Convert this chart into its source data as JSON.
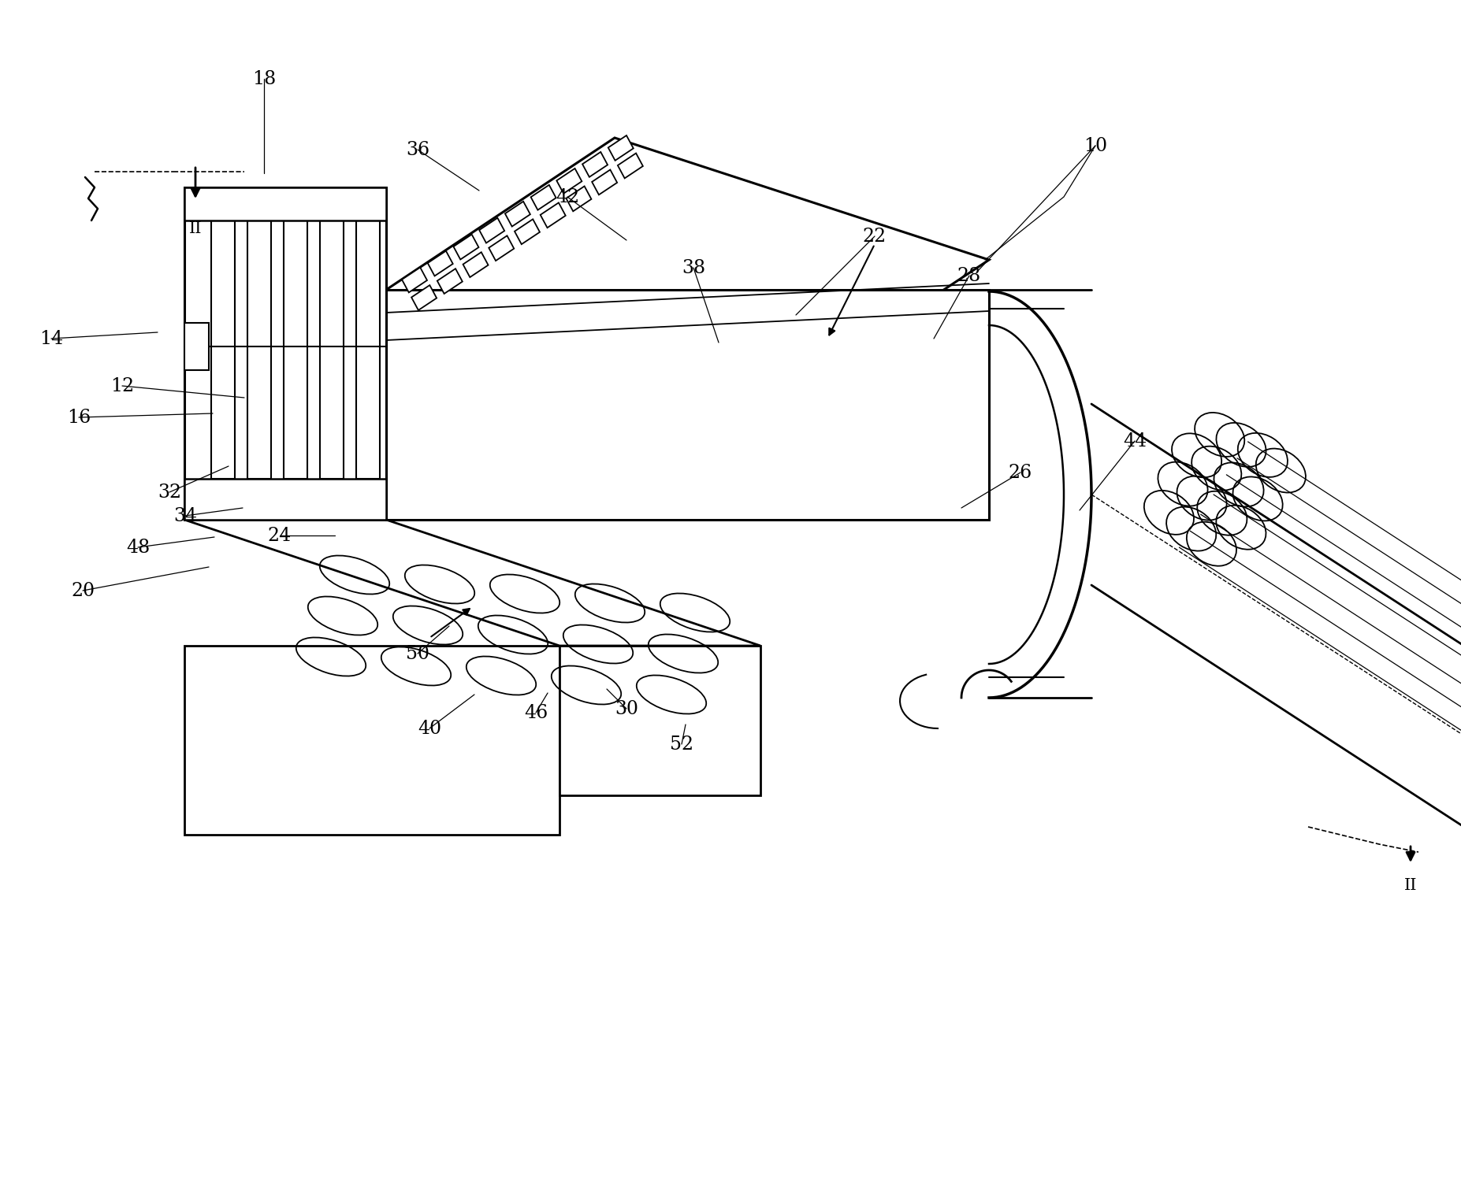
{
  "bg": "#ffffff",
  "lc": "#000000",
  "lw": 2.0,
  "lw_thin": 1.2,
  "lw_thick": 2.5,
  "labels": [
    [
      "10",
      1390,
      185
    ],
    [
      "12",
      155,
      490
    ],
    [
      "14",
      65,
      430
    ],
    [
      "16",
      100,
      530
    ],
    [
      "18",
      335,
      100
    ],
    [
      "20",
      105,
      750
    ],
    [
      "22",
      1110,
      300
    ],
    [
      "24",
      355,
      680
    ],
    [
      "26",
      1295,
      600
    ],
    [
      "28",
      1230,
      350
    ],
    [
      "30",
      795,
      900
    ],
    [
      "32",
      215,
      625
    ],
    [
      "34",
      235,
      655
    ],
    [
      "36",
      530,
      190
    ],
    [
      "38",
      880,
      340
    ],
    [
      "40",
      545,
      925
    ],
    [
      "42",
      720,
      250
    ],
    [
      "44",
      1440,
      560
    ],
    [
      "46",
      680,
      905
    ],
    [
      "48",
      175,
      695
    ],
    [
      "50",
      530,
      830
    ],
    [
      "52",
      865,
      945
    ]
  ],
  "leader_lines": [
    [
      "10",
      1390,
      185,
      1240,
      345
    ],
    [
      "12",
      155,
      490,
      310,
      505
    ],
    [
      "14",
      65,
      430,
      200,
      422
    ],
    [
      "16",
      100,
      530,
      270,
      525
    ],
    [
      "18",
      335,
      100,
      335,
      220
    ],
    [
      "20",
      105,
      750,
      265,
      720
    ],
    [
      "22",
      1110,
      300,
      1010,
      400
    ],
    [
      "24",
      355,
      680,
      425,
      680
    ],
    [
      "26",
      1295,
      600,
      1220,
      645
    ],
    [
      "28",
      1230,
      350,
      1185,
      430
    ],
    [
      "30",
      795,
      900,
      770,
      875
    ],
    [
      "32",
      215,
      625,
      290,
      592
    ],
    [
      "34",
      235,
      655,
      308,
      645
    ],
    [
      "36",
      530,
      190,
      608,
      242
    ],
    [
      "38",
      880,
      340,
      912,
      435
    ],
    [
      "40",
      545,
      925,
      602,
      882
    ],
    [
      "42",
      720,
      250,
      795,
      305
    ],
    [
      "44",
      1440,
      560,
      1370,
      648
    ],
    [
      "46",
      680,
      905,
      695,
      880
    ],
    [
      "48",
      175,
      695,
      272,
      682
    ],
    [
      "50",
      530,
      830,
      570,
      795
    ],
    [
      "52",
      865,
      945,
      870,
      920
    ]
  ]
}
